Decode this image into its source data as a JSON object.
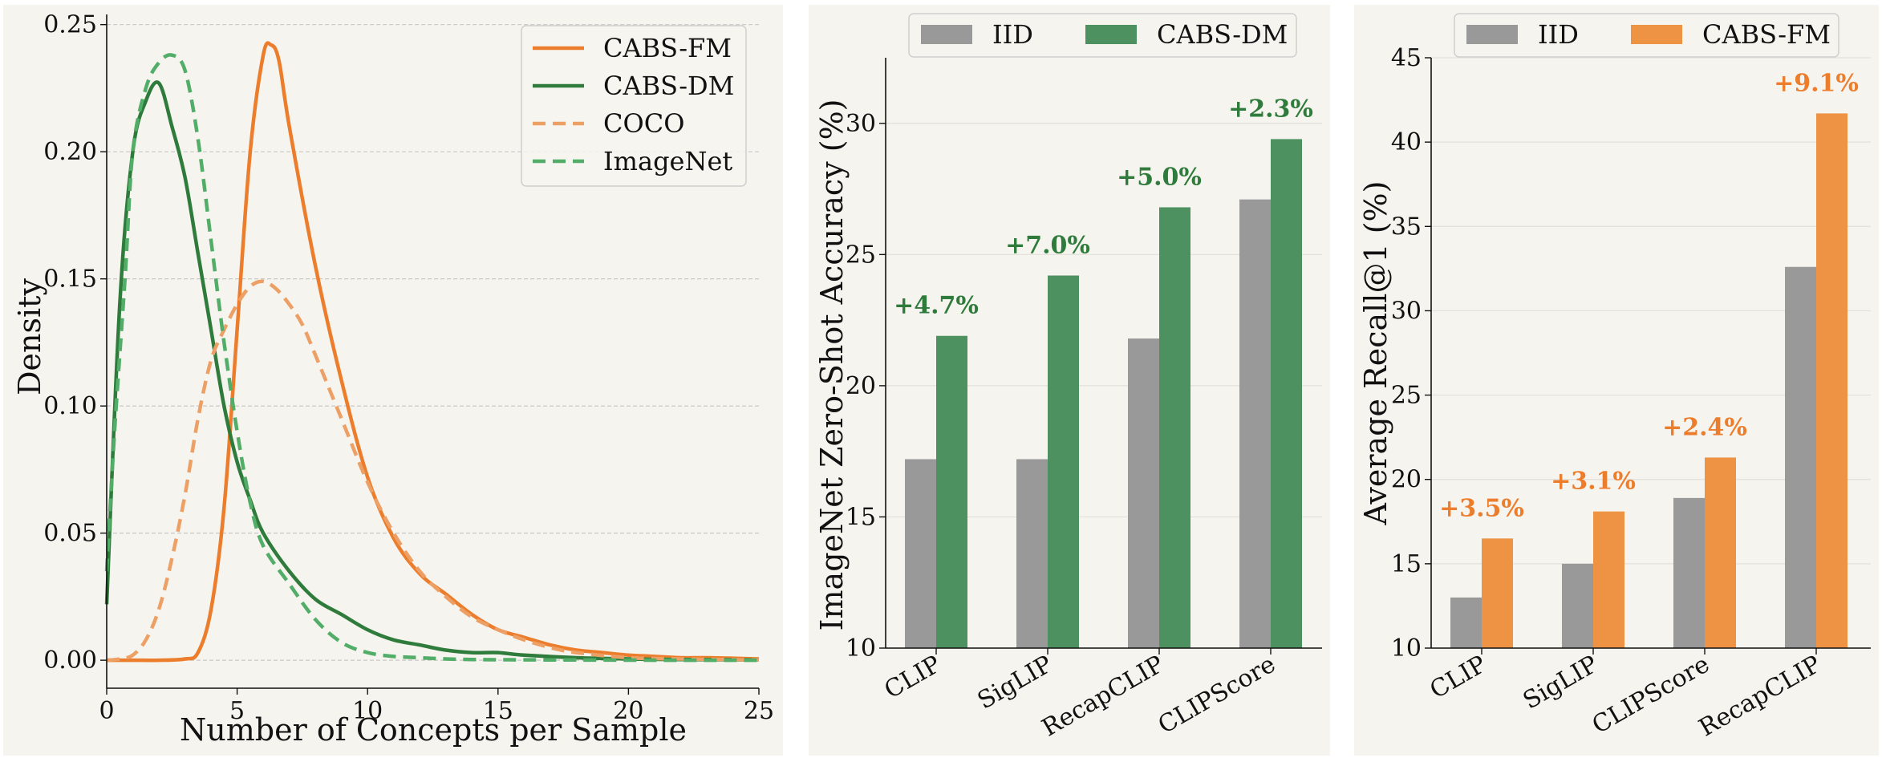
{
  "colors": {
    "panel_bg": "#f6f4ee",
    "grid": "#c8c8c8",
    "cabs_fm": "#ec7d2c",
    "cabs_dm": "#2f7b3c",
    "coco": "#eda066",
    "imagenet": "#52ad68",
    "iid": "#999999",
    "dm_bar": "#4e9160",
    "fm_bar": "#ee9344"
  },
  "chart_data": [
    {
      "type": "line",
      "xlabel": "Number of Concepts per Sample",
      "ylabel": "Density",
      "xlim": [
        0,
        25
      ],
      "ylim": [
        -0.011,
        0.254
      ],
      "xticks": [
        0,
        5,
        10,
        15,
        20,
        25
      ],
      "yticks": [
        0.0,
        0.05,
        0.1,
        0.15,
        0.2,
        0.25
      ],
      "ytick_labels": [
        "0.00",
        "0.05",
        "0.10",
        "0.15",
        "0.20",
        "0.25"
      ],
      "legend_position": "top-right",
      "series": [
        {
          "name": "CABS-FM",
          "style": "solid",
          "x": [
            0,
            1,
            2,
            3,
            3.5,
            4,
            4.5,
            5,
            5.5,
            6,
            6.3,
            6.6,
            7,
            8,
            9,
            10,
            11,
            12,
            13,
            14,
            15,
            16,
            17,
            18,
            19,
            20,
            21,
            22,
            23,
            24,
            25
          ],
          "y": [
            0,
            0,
            0,
            0.0005,
            0.003,
            0.02,
            0.06,
            0.13,
            0.2,
            0.238,
            0.242,
            0.236,
            0.21,
            0.155,
            0.11,
            0.072,
            0.048,
            0.034,
            0.026,
            0.018,
            0.012,
            0.009,
            0.006,
            0.004,
            0.003,
            0.002,
            0.0015,
            0.001,
            0.001,
            0.0008,
            0.0005
          ]
        },
        {
          "name": "CABS-DM",
          "style": "solid",
          "x": [
            0,
            0.5,
            1,
            1.5,
            2,
            2.5,
            3,
            3.5,
            4,
            4.5,
            5,
            5.5,
            6,
            7,
            8,
            9,
            10,
            11,
            12,
            13,
            14,
            15,
            16,
            18,
            20,
            22,
            25
          ],
          "y": [
            0.022,
            0.14,
            0.2,
            0.22,
            0.227,
            0.21,
            0.19,
            0.16,
            0.13,
            0.1,
            0.078,
            0.063,
            0.05,
            0.035,
            0.024,
            0.018,
            0.012,
            0.008,
            0.006,
            0.004,
            0.003,
            0.003,
            0.002,
            0.001,
            0.0005,
            0.0003,
            0.0001
          ]
        },
        {
          "name": "COCO",
          "style": "dashed",
          "x": [
            0,
            0.5,
            1,
            1.5,
            2,
            2.5,
            3,
            3.5,
            4,
            4.5,
            5,
            5.5,
            6,
            6.5,
            7,
            7.5,
            8,
            9,
            10,
            11,
            12,
            13,
            14,
            15,
            16,
            17,
            18,
            20,
            22,
            25
          ],
          "y": [
            0,
            0.0005,
            0.002,
            0.008,
            0.02,
            0.04,
            0.065,
            0.095,
            0.118,
            0.13,
            0.14,
            0.147,
            0.149,
            0.146,
            0.14,
            0.132,
            0.12,
            0.095,
            0.07,
            0.05,
            0.035,
            0.025,
            0.017,
            0.012,
            0.008,
            0.005,
            0.003,
            0.001,
            0.0005,
            0.0001
          ]
        },
        {
          "name": "ImageNet",
          "style": "dashed",
          "x": [
            0,
            0.3,
            0.7,
            1,
            1.5,
            2,
            2.5,
            3,
            3.5,
            4,
            4.5,
            5,
            5.5,
            6,
            7,
            8,
            9,
            10,
            11,
            12,
            13,
            14,
            15,
            18,
            22,
            25
          ],
          "y": [
            0.035,
            0.09,
            0.15,
            0.2,
            0.225,
            0.235,
            0.238,
            0.232,
            0.205,
            0.165,
            0.125,
            0.09,
            0.062,
            0.045,
            0.03,
            0.016,
            0.007,
            0.003,
            0.0015,
            0.001,
            0.0005,
            0.0003,
            0.0002,
            0.0001,
            0,
            0
          ]
        }
      ]
    },
    {
      "type": "bar",
      "ylabel": "ImageNet Zero-Shot Accuracy (%)",
      "ylim": [
        10,
        32.5
      ],
      "yticks": [
        10,
        15,
        20,
        25,
        30
      ],
      "categories": [
        "CLIP",
        "SigLIP",
        "RecapCLIP",
        "CLIPScore"
      ],
      "legend_position": "top",
      "series": [
        {
          "name": "IID",
          "values": [
            17.2,
            17.2,
            21.8,
            27.1
          ]
        },
        {
          "name": "CABS-DM",
          "values": [
            21.9,
            24.2,
            26.8,
            29.4
          ]
        }
      ],
      "annotations": [
        "+4.7%",
        "+7.0%",
        "+5.0%",
        "+2.3%"
      ]
    },
    {
      "type": "bar",
      "ylabel": "Average Recall@1 (%)",
      "ylim": [
        10,
        45
      ],
      "yticks": [
        10,
        15,
        20,
        25,
        30,
        35,
        40,
        45
      ],
      "categories": [
        "CLIP",
        "SigLIP",
        "CLIPScore",
        "RecapCLIP"
      ],
      "legend_position": "top",
      "series": [
        {
          "name": "IID",
          "values": [
            13.0,
            15.0,
            18.9,
            32.6
          ]
        },
        {
          "name": "CABS-FM",
          "values": [
            16.5,
            18.1,
            21.3,
            41.7
          ]
        }
      ],
      "annotations": [
        "+3.5%",
        "+3.1%",
        "+2.4%",
        "+9.1%"
      ]
    }
  ]
}
